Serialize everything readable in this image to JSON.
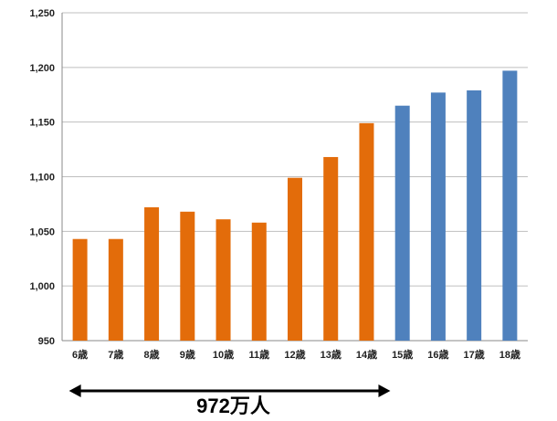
{
  "chart_data": {
    "type": "bar",
    "title": "",
    "xlabel": "",
    "ylabel": "",
    "categories": [
      "6歳",
      "7歳",
      "8歳",
      "9歳",
      "10歳",
      "11歳",
      "12歳",
      "13歳",
      "14歳",
      "15歳",
      "16歳",
      "17歳",
      "18歳"
    ],
    "values": [
      1043,
      1043,
      1072,
      1068,
      1061,
      1058,
      1099,
      1118,
      1149,
      1165,
      1177,
      1179,
      1197
    ],
    "bar_colors": [
      "#E36C0A",
      "#E36C0A",
      "#E36C0A",
      "#E36C0A",
      "#E36C0A",
      "#E36C0A",
      "#E36C0A",
      "#E36C0A",
      "#E36C0A",
      "#4F81BD",
      "#4F81BD",
      "#4F81BD",
      "#4F81BD"
    ],
    "ylim": [
      950,
      1250
    ],
    "yticks": [
      "950",
      "1,000",
      "1,050",
      "1,100",
      "1,150",
      "1,200",
      "1,250"
    ],
    "ytick_values": [
      950,
      1000,
      1050,
      1100,
      1150,
      1200,
      1250
    ],
    "grid": true,
    "annotation": {
      "text": "972万人",
      "span_categories": [
        "6歳",
        "14歳"
      ],
      "style": "double-headed-arrow"
    }
  },
  "colors": {
    "orange": "#E36C0A",
    "blue": "#4F81BD",
    "grid": "#BFBFBF",
    "axis": "#888888"
  }
}
